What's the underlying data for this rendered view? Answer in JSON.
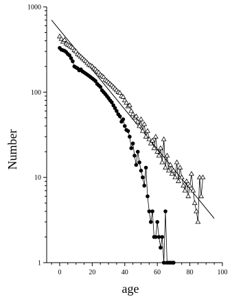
{
  "chart_data": {
    "type": "scatter",
    "title": "",
    "xlabel": "age",
    "ylabel": "Number",
    "xlim": [
      -8,
      100
    ],
    "ylim": [
      1,
      1000
    ],
    "yscale": "log",
    "grid": false,
    "legend": "none",
    "x_ticks": [
      0,
      20,
      40,
      60,
      80,
      100
    ],
    "x_tick_labels": [
      "0",
      "20",
      "40",
      "60",
      "80",
      "100"
    ],
    "y_ticks": [
      1,
      10,
      100,
      1000
    ],
    "y_tick_labels": [
      "1",
      "10",
      "100",
      "1000"
    ],
    "series": [
      {
        "marker": "open-triangle",
        "connected": true,
        "color": "#000000",
        "points": [
          [
            0,
            450
          ],
          [
            1,
            420
          ],
          [
            2,
            390
          ],
          [
            3,
            410
          ],
          [
            4,
            370
          ],
          [
            5,
            360
          ],
          [
            6,
            350
          ],
          [
            7,
            340
          ],
          [
            8,
            330
          ],
          [
            9,
            310
          ],
          [
            10,
            300
          ],
          [
            11,
            280
          ],
          [
            12,
            270
          ],
          [
            13,
            260
          ],
          [
            14,
            250
          ],
          [
            15,
            240
          ],
          [
            16,
            230
          ],
          [
            17,
            220
          ],
          [
            18,
            210
          ],
          [
            19,
            205
          ],
          [
            20,
            200
          ],
          [
            21,
            190
          ],
          [
            22,
            185
          ],
          [
            23,
            175
          ],
          [
            24,
            170
          ],
          [
            25,
            160
          ],
          [
            26,
            155
          ],
          [
            27,
            150
          ],
          [
            28,
            140
          ],
          [
            29,
            135
          ],
          [
            30,
            130
          ],
          [
            31,
            125
          ],
          [
            32,
            120
          ],
          [
            33,
            115
          ],
          [
            34,
            110
          ],
          [
            35,
            105
          ],
          [
            36,
            100
          ],
          [
            37,
            98
          ],
          [
            38,
            90
          ],
          [
            39,
            88
          ],
          [
            40,
            80
          ],
          [
            41,
            75
          ],
          [
            42,
            68
          ],
          [
            43,
            70
          ],
          [
            44,
            60
          ],
          [
            45,
            55
          ],
          [
            46,
            50
          ],
          [
            47,
            52
          ],
          [
            48,
            45
          ],
          [
            49,
            40
          ],
          [
            50,
            48
          ],
          [
            51,
            35
          ],
          [
            52,
            42
          ],
          [
            53,
            30
          ],
          [
            54,
            35
          ],
          [
            55,
            28
          ],
          [
            56,
            25
          ],
          [
            57,
            27
          ],
          [
            58,
            22
          ],
          [
            59,
            30
          ],
          [
            60,
            20
          ],
          [
            61,
            18
          ],
          [
            62,
            22
          ],
          [
            63,
            15
          ],
          [
            64,
            28
          ],
          [
            65,
            13
          ],
          [
            66,
            18
          ],
          [
            67,
            12
          ],
          [
            68,
            14
          ],
          [
            69,
            11
          ],
          [
            70,
            12
          ],
          [
            71,
            10
          ],
          [
            72,
            15
          ],
          [
            73,
            9
          ],
          [
            74,
            13
          ],
          [
            75,
            10
          ],
          [
            76,
            8
          ],
          [
            77,
            7
          ],
          [
            78,
            9
          ],
          [
            79,
            6
          ],
          [
            80,
            8
          ],
          [
            81,
            11
          ],
          [
            82,
            7
          ],
          [
            83,
            5
          ],
          [
            84,
            4
          ],
          [
            85,
            3
          ],
          [
            86,
            10
          ],
          [
            87,
            6
          ],
          [
            88,
            10
          ]
        ]
      },
      {
        "marker": "filled-circle",
        "connected": true,
        "color": "#000000",
        "points": [
          [
            0,
            330
          ],
          [
            1,
            315
          ],
          [
            2,
            310
          ],
          [
            3,
            305
          ],
          [
            4,
            295
          ],
          [
            5,
            280
          ],
          [
            6,
            270
          ],
          [
            7,
            250
          ],
          [
            8,
            230
          ],
          [
            9,
            200
          ],
          [
            10,
            195
          ],
          [
            11,
            190
          ],
          [
            12,
            180
          ],
          [
            13,
            185
          ],
          [
            14,
            175
          ],
          [
            15,
            170
          ],
          [
            16,
            165
          ],
          [
            17,
            160
          ],
          [
            18,
            155
          ],
          [
            19,
            150
          ],
          [
            20,
            145
          ],
          [
            21,
            140
          ],
          [
            22,
            135
          ],
          [
            23,
            125
          ],
          [
            24,
            120
          ],
          [
            25,
            115
          ],
          [
            26,
            105
          ],
          [
            27,
            100
          ],
          [
            28,
            95
          ],
          [
            29,
            90
          ],
          [
            30,
            85
          ],
          [
            31,
            80
          ],
          [
            32,
            76
          ],
          [
            33,
            70
          ],
          [
            34,
            65
          ],
          [
            35,
            60
          ],
          [
            36,
            55
          ],
          [
            37,
            52
          ],
          [
            38,
            45
          ],
          [
            39,
            48
          ],
          [
            40,
            40
          ],
          [
            41,
            36
          ],
          [
            42,
            35
          ],
          [
            43,
            30
          ],
          [
            44,
            22
          ],
          [
            45,
            25
          ],
          [
            46,
            18
          ],
          [
            47,
            14
          ],
          [
            48,
            20
          ],
          [
            49,
            15
          ],
          [
            50,
            12
          ],
          [
            51,
            10
          ],
          [
            52,
            8
          ],
          [
            53,
            13
          ],
          [
            54,
            6
          ],
          [
            55,
            4
          ],
          [
            56,
            3
          ],
          [
            57,
            4
          ],
          [
            58,
            2
          ],
          [
            59,
            2
          ],
          [
            60,
            3
          ],
          [
            61,
            2
          ],
          [
            62,
            1.5
          ],
          [
            63,
            2
          ],
          [
            64,
            1
          ],
          [
            65,
            4
          ],
          [
            66,
            1
          ],
          [
            67,
            1
          ],
          [
            68,
            1
          ],
          [
            69,
            1
          ],
          [
            70,
            1
          ]
        ]
      },
      {
        "marker": "none",
        "style": "fit-line",
        "color": "#000000",
        "points": [
          [
            -5,
            700
          ],
          [
            95,
            3.3
          ]
        ]
      }
    ]
  }
}
